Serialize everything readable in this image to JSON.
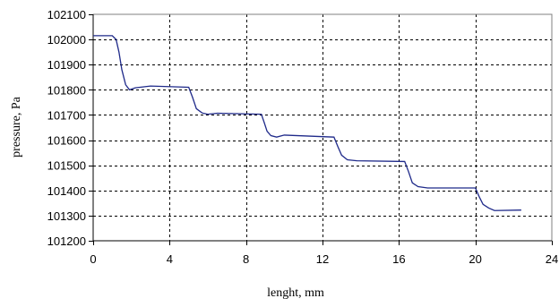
{
  "chart_data": {
    "type": "line",
    "xlabel": "lenght, mm",
    "ylabel": "pressure, Pa",
    "xlim": [
      0,
      24
    ],
    "ylim": [
      101200,
      102100
    ],
    "xticks": [
      0,
      4,
      8,
      12,
      16,
      20,
      24
    ],
    "yticks": [
      101200,
      101300,
      101400,
      101500,
      101600,
      101700,
      101800,
      101900,
      102000,
      102100
    ],
    "grid": true,
    "series_color": "#1f2a8a",
    "series": [
      {
        "x": [
          0,
          1.0,
          1.2,
          1.35,
          1.5,
          1.7,
          1.9,
          2.2,
          3.0,
          5.0,
          5.2,
          5.4,
          5.7,
          6.0,
          6.5,
          8.8,
          8.95,
          9.1,
          9.3,
          9.6,
          10.0,
          12.6,
          12.8,
          13.0,
          13.3,
          13.8,
          16.3,
          16.5,
          16.7,
          17.0,
          17.5,
          20.0,
          20.2,
          20.4,
          20.7,
          21.0,
          22.4
        ],
        "y": [
          102015,
          102015,
          102000,
          101950,
          101880,
          101820,
          101800,
          101808,
          101815,
          101810,
          101770,
          101725,
          101708,
          101703,
          101707,
          101703,
          101670,
          101635,
          101618,
          101612,
          101620,
          101612,
          101575,
          101540,
          101522,
          101518,
          101515,
          101475,
          101430,
          101415,
          101410,
          101410,
          101375,
          101345,
          101330,
          101320,
          101322
        ]
      }
    ]
  }
}
